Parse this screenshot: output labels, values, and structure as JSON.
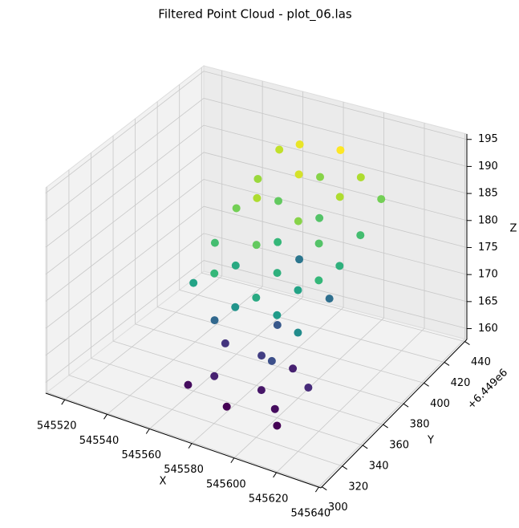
{
  "chart_data": {
    "type": "scatter3d",
    "title": "Filtered Point Cloud - plot_06.las",
    "x_label": "X",
    "y_label": "Y",
    "z_label": "Z",
    "y_offset_label": "+6.449e6",
    "xlim": [
      545511,
      545641
    ],
    "ylim": [
      299,
      442
    ],
    "zlim": [
      158,
      196
    ],
    "xticks": [
      545520,
      545540,
      545560,
      545580,
      545600,
      545620,
      545640
    ],
    "yticks": [
      300,
      320,
      340,
      360,
      380,
      400,
      420,
      440
    ],
    "zticks": [
      160,
      165,
      170,
      175,
      180,
      185,
      190,
      195
    ],
    "grid": true,
    "colormap": "viridis",
    "x": [
      545560,
      545570,
      545580,
      545590,
      545600,
      545610,
      545560,
      545570,
      545580,
      545590,
      545600,
      545610,
      545560,
      545570,
      545580,
      545590,
      545600,
      545610,
      545560,
      545570,
      545580,
      545590,
      545600,
      545610,
      545560,
      545570,
      545580,
      545590,
      545600,
      545610,
      545565,
      545585,
      545600,
      545575,
      545595,
      545560,
      545570,
      545580,
      545590,
      545600,
      545610,
      545565,
      545595,
      545605,
      545585
    ],
    "y": [
      420,
      420,
      420,
      420,
      420,
      420,
      400,
      400,
      400,
      400,
      400,
      400,
      380,
      380,
      380,
      380,
      380,
      380,
      360,
      360,
      360,
      360,
      360,
      360,
      340,
      340,
      340,
      340,
      340,
      340,
      350,
      370,
      390,
      410,
      345,
      335,
      340,
      332,
      345,
      338,
      350,
      360,
      365,
      330,
      355
    ],
    "z": [
      189,
      191,
      186,
      192,
      188,
      185,
      187,
      184,
      190,
      183,
      188,
      182,
      185,
      188,
      181,
      186,
      183,
      180,
      182,
      179,
      184,
      180,
      178,
      181,
      178,
      181,
      176,
      179,
      177,
      175,
      170,
      168,
      171,
      172,
      167,
      160,
      162,
      159,
      161,
      160,
      163,
      164,
      162,
      159,
      165
    ]
  }
}
